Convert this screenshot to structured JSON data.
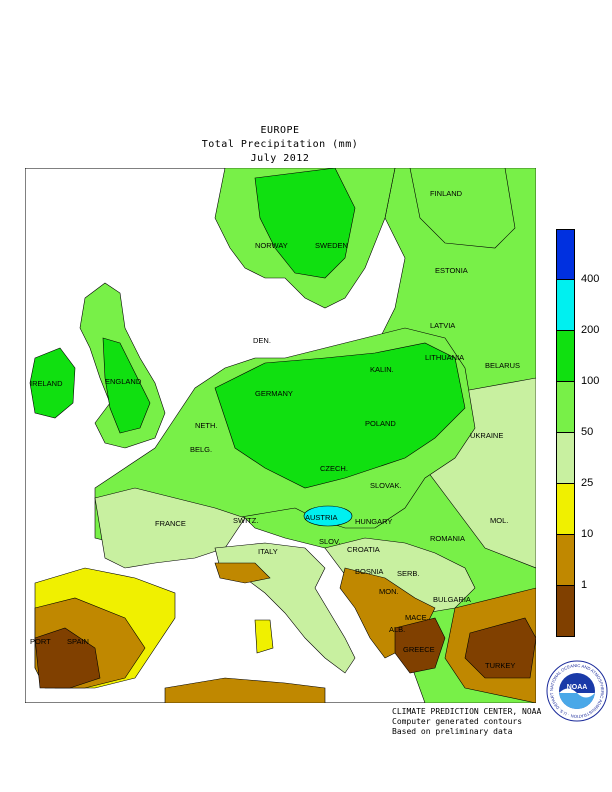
{
  "title": {
    "region": "EUROPE",
    "variable": "Total Precipitation (mm)",
    "period": "July 2012"
  },
  "legend": {
    "colors": [
      "#0030e0",
      "#00f0f0",
      "#10e010",
      "#78f048",
      "#c8f0a0",
      "#f0f000",
      "#c08800",
      "#804000"
    ],
    "ticks": [
      "400",
      "200",
      "100",
      "50",
      "25",
      "10",
      "1"
    ]
  },
  "countries": {
    "finland": "FINLAND",
    "norway": "NORWAY",
    "sweden": "SWEDEN",
    "estonia": "ESTONIA",
    "latvia": "LATVIA",
    "den": "DEN.",
    "lithuania": "LITHUANIA",
    "kalin": "KALIN.",
    "belarus": "BELARUS",
    "ireland": "IRELAND",
    "england": "ENGLAND",
    "neth": "NETH.",
    "germany": "GERMANY",
    "poland": "POLAND",
    "belg": "BELG.",
    "czech": "CZECH.",
    "ukraine": "UKRAINE",
    "slovak": "SLOVAK.",
    "france": "FRANCE",
    "switz": "SWITZ.",
    "austria": "AUSTRIA",
    "hungary": "HUNGARY",
    "mol": "MOL.",
    "romania": "ROMANIA",
    "slov": "SLOV.",
    "croatia": "CROATIA",
    "italy": "ITALY",
    "bosnia": "BOSNIA",
    "serb": "SERB.",
    "mon": "MON.",
    "bulgaria": "BULGARIA",
    "mace": "MACE.",
    "alb": "ALB.",
    "greece": "GREECE",
    "port": "PORT",
    "spain": "SPAIN",
    "turkey": "TURKEY"
  },
  "footer": {
    "line1": "CLIMATE PREDICTION CENTER, NOAA",
    "line2": "Computer generated contours",
    "line3": "Based on preliminary data"
  },
  "logo": {
    "text": "NOAA",
    "ring": "NATIONAL OCEANIC AND ATMOSPHERIC ADMINISTRATION · U.S. DEPARTMENT OF COMMERCE ·"
  }
}
